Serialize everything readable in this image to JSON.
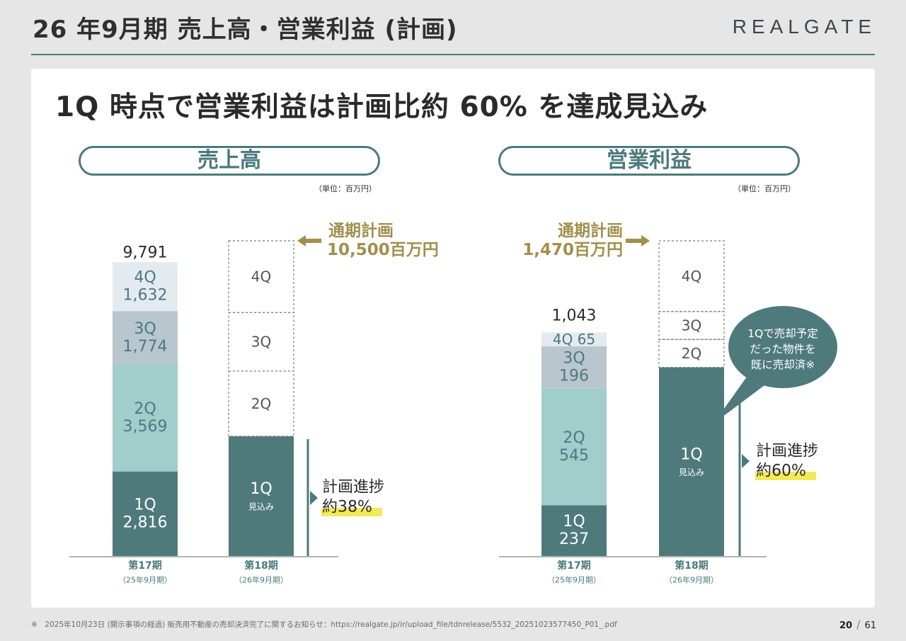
{
  "page": {
    "title": "26 年9月期  売上高・営業利益 (計画)",
    "logo": "REALGATE",
    "headline": "1Q 時点で営業利益は計画比約 60% を達成見込み",
    "footnote": "※　2025年10月23日 (開示事項の経過) 販売用不動産の売却決済完了に関するお知らせ：https://realgate.jp/ir/upload_file/tdnrelease/5532_20251023577450_P01_.pdf",
    "page_current": "20",
    "page_total": "61"
  },
  "colors": {
    "q1": "#4f7a7c",
    "q2": "#a1cdcb",
    "q3": "#b9c6cd",
    "q4": "#e4ebf0",
    "accent": "#4b7a7d",
    "gold": "#a18f4c",
    "highlight": "#f3ea5a",
    "axis": "#9a9a9a",
    "dashed": "#7c7c7c"
  },
  "chart_data": [
    {
      "type": "bar",
      "stacked": true,
      "pill_label": "売上高",
      "unit_label": "（単位：百万円）",
      "title": "売上高",
      "categories": [
        "第17期",
        "第18期"
      ],
      "category_sub": [
        "（25年9月期）",
        "（26年9月期）"
      ],
      "ylim": [
        0,
        10500
      ],
      "series": [
        {
          "name": "1Q",
          "values": [
            2816,
            3990
          ],
          "labels": [
            "1Q\n2,816",
            "1Q\n見込み"
          ]
        },
        {
          "name": "2Q",
          "values": [
            3569,
            2170
          ],
          "labels": [
            "2Q\n3,569",
            "2Q"
          ]
        },
        {
          "name": "3Q",
          "values": [
            1774,
            1950
          ],
          "labels": [
            "3Q\n1,774",
            "3Q"
          ]
        },
        {
          "name": "4Q",
          "values": [
            1632,
            2390
          ],
          "labels": [
            "4Q\n1,632",
            "4Q"
          ]
        }
      ],
      "total_label": "9,791",
      "plan_label": "通期計画\n10,500百万円",
      "progress_label": "計画進捗",
      "progress_value": "約38%"
    },
    {
      "type": "bar",
      "stacked": true,
      "pill_label": "営業利益",
      "unit_label": "（単位：百万円）",
      "title": "営業利益",
      "categories": [
        "第17期",
        "第18期"
      ],
      "category_sub": [
        "（25年9月期）",
        "（26年9月期）"
      ],
      "ylim": [
        0,
        1470
      ],
      "series": [
        {
          "name": "1Q",
          "values": [
            237,
            880
          ],
          "labels": [
            "1Q\n237",
            "1Q\n見込み"
          ]
        },
        {
          "name": "2Q",
          "values": [
            545,
            130
          ],
          "labels": [
            "2Q\n545",
            "2Q"
          ]
        },
        {
          "name": "3Q",
          "values": [
            196,
            130
          ],
          "labels": [
            "3Q\n196",
            "3Q"
          ]
        },
        {
          "name": "4Q",
          "values": [
            65,
            330
          ],
          "labels": [
            "4Q 65",
            "4Q"
          ]
        }
      ],
      "total_label": "1,043",
      "plan_label": "通期計画\n1,470百万円",
      "progress_label": "計画進捗",
      "progress_value": "約60%",
      "callout": "1Qで売却予定\nだった物件を\n既に売却済※"
    }
  ]
}
